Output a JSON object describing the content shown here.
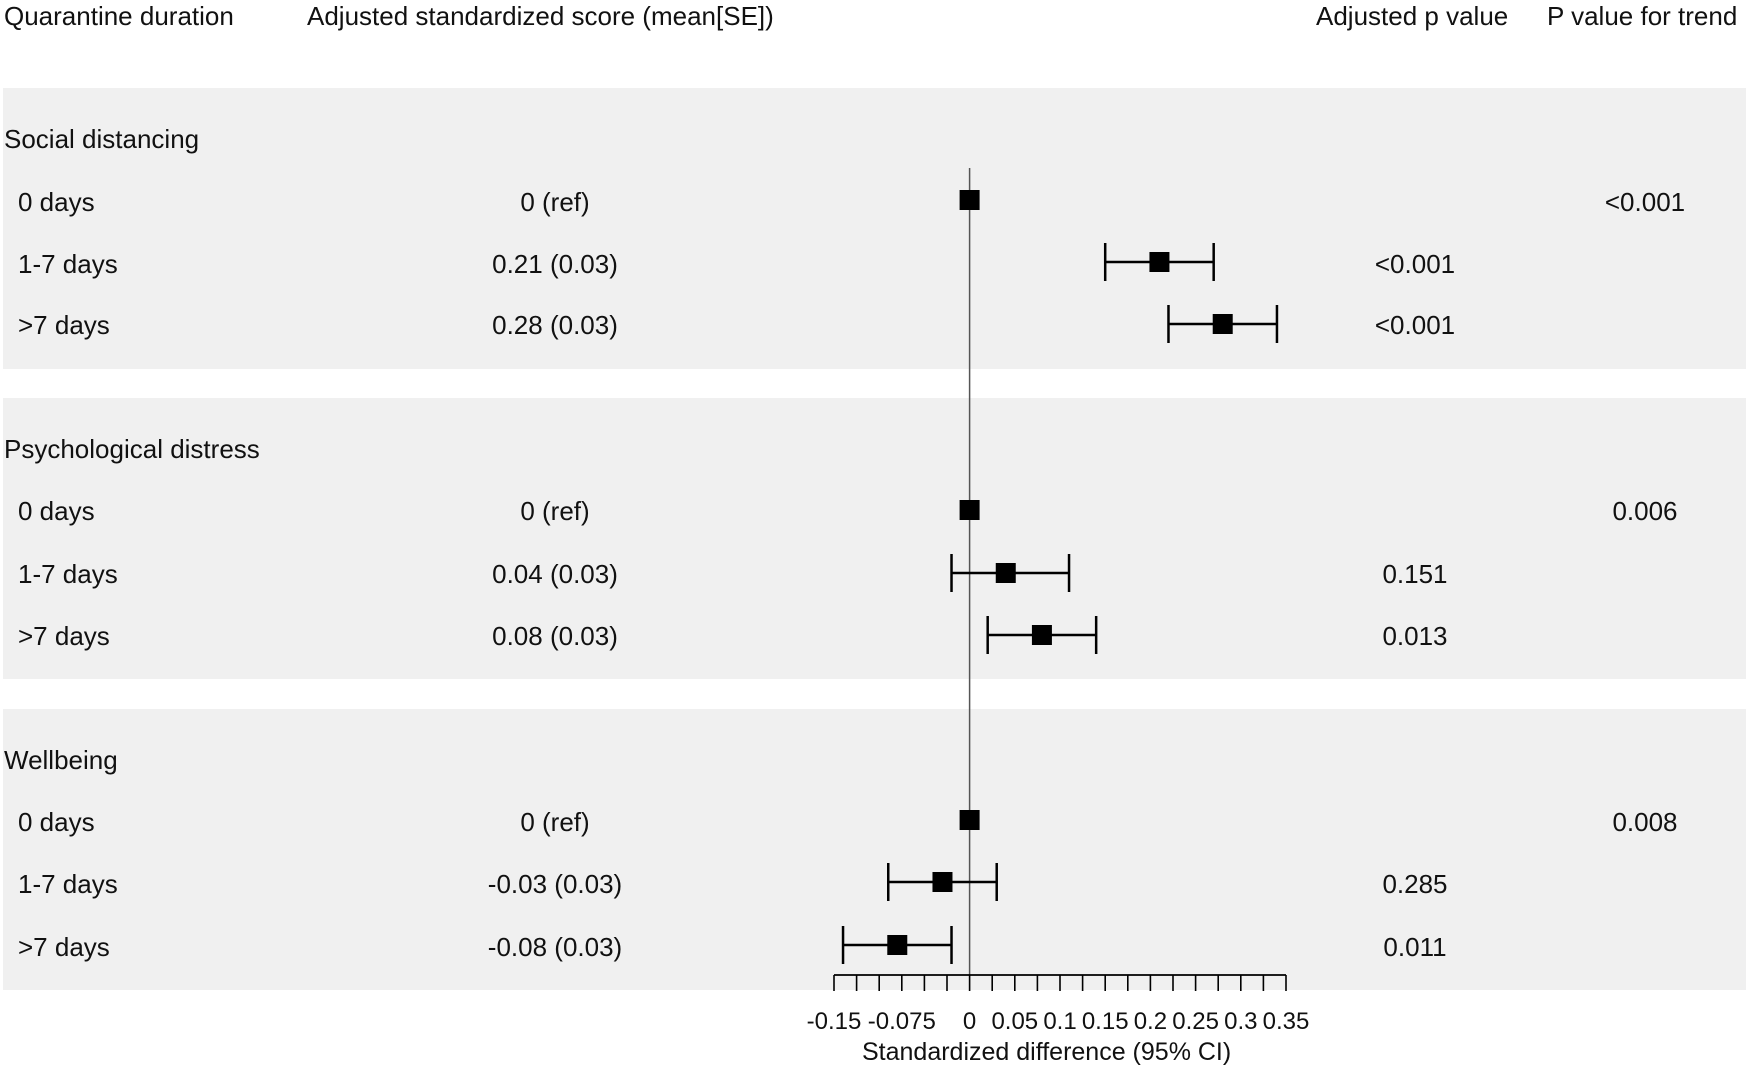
{
  "headers": {
    "col1": "Quarantine duration",
    "col2": "Adjusted standardized score (mean[SE])",
    "col3": "Adjusted p value",
    "col4": "P value for trend"
  },
  "groups": [
    {
      "name": "Social distancing",
      "trend": "<0.001",
      "rows": [
        {
          "label": "0 days",
          "score": "0 (ref)",
          "p": ""
        },
        {
          "label": "1-7 days",
          "score": "0.21 (0.03)",
          "p": "<0.001"
        },
        {
          "label": ">7 days",
          "score": "0.28 (0.03)",
          "p": "<0.001"
        }
      ]
    },
    {
      "name": "Psychological distress",
      "trend": "0.006",
      "rows": [
        {
          "label": "0 days",
          "score": "0 (ref)",
          "p": ""
        },
        {
          "label": "1-7 days",
          "score": "0.04 (0.03)",
          "p": "0.151"
        },
        {
          "label": ">7 days",
          "score": "0.08 (0.03)",
          "p": "0.013"
        }
      ]
    },
    {
      "name": "Wellbeing",
      "trend": "0.008",
      "rows": [
        {
          "label": "0 days",
          "score": "0 (ref)",
          "p": ""
        },
        {
          "label": "1-7 days",
          "score": "-0.03 (0.03)",
          "p": "0.285"
        },
        {
          "label": ">7 days",
          "score": "-0.08 (0.03)",
          "p": "0.011"
        }
      ]
    }
  ],
  "chart_data": {
    "type": "forest",
    "xlabel": "Standardized difference (95% CI)",
    "xlim": [
      -0.15,
      0.35
    ],
    "ticks": [
      -0.15,
      -0.125,
      -0.1,
      -0.075,
      -0.05,
      -0.025,
      0,
      0.025,
      0.05,
      0.075,
      0.1,
      0.125,
      0.15,
      0.175,
      0.2,
      0.225,
      0.25,
      0.275,
      0.3,
      0.325,
      0.35
    ],
    "tick_labels": [
      "-0.15",
      "-0.075",
      "0",
      "0.05",
      "0.1",
      "0.15",
      "0.2",
      "0.25",
      "0.3",
      "0.35"
    ],
    "tick_label_values": [
      -0.15,
      -0.075,
      0,
      0.05,
      0.1,
      0.15,
      0.2,
      0.25,
      0.3,
      0.35
    ],
    "reference_line": 0,
    "points": [
      {
        "group": "Social distancing",
        "row": "0 days",
        "estimate": 0,
        "lower": null,
        "upper": null
      },
      {
        "group": "Social distancing",
        "row": "1-7 days",
        "estimate": 0.21,
        "lower": 0.15,
        "upper": 0.27
      },
      {
        "group": "Social distancing",
        "row": ">7 days",
        "estimate": 0.28,
        "lower": 0.22,
        "upper": 0.34
      },
      {
        "group": "Psychological distress",
        "row": "0 days",
        "estimate": 0,
        "lower": null,
        "upper": null
      },
      {
        "group": "Psychological distress",
        "row": "1-7 days",
        "estimate": 0.04,
        "lower": -0.02,
        "upper": 0.11
      },
      {
        "group": "Psychological distress",
        "row": ">7 days",
        "estimate": 0.08,
        "lower": 0.02,
        "upper": 0.14
      },
      {
        "group": "Wellbeing",
        "row": "0 days",
        "estimate": 0,
        "lower": null,
        "upper": null
      },
      {
        "group": "Wellbeing",
        "row": "1-7 days",
        "estimate": -0.03,
        "lower": -0.09,
        "upper": 0.03
      },
      {
        "group": "Wellbeing",
        "row": ">7 days",
        "estimate": -0.08,
        "lower": -0.14,
        "upper": -0.02
      }
    ],
    "marker_color": "#000000",
    "band_color": "#f0f0f0"
  }
}
